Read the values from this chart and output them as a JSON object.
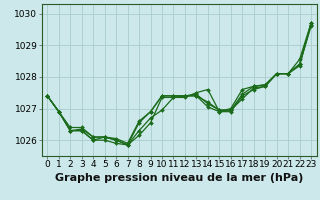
{
  "bg_color": "#cce8ea",
  "grid_color": "#aacccc",
  "line_color": "#1a6b1a",
  "xlim": [
    -0.5,
    23.5
  ],
  "ylim": [
    1025.5,
    1030.3
  ],
  "yticks": [
    1026,
    1027,
    1028,
    1029,
    1030
  ],
  "xticks": [
    0,
    1,
    2,
    3,
    4,
    5,
    6,
    7,
    8,
    9,
    10,
    11,
    12,
    13,
    14,
    15,
    16,
    17,
    18,
    19,
    20,
    21,
    22,
    23
  ],
  "series": [
    [
      1027.4,
      1026.9,
      1026.4,
      1026.4,
      1026.1,
      1026.1,
      1026.0,
      1025.85,
      1026.3,
      1026.7,
      1026.95,
      1027.35,
      1027.4,
      1027.4,
      1027.2,
      1026.95,
      1026.95,
      1027.3,
      1027.65,
      1027.7,
      1028.1,
      1028.1,
      1028.55,
      1029.7
    ],
    [
      1027.4,
      1026.9,
      1026.3,
      1026.3,
      1026.0,
      1026.0,
      1025.9,
      1025.85,
      1026.55,
      1026.9,
      1027.4,
      1027.4,
      1027.4,
      1027.4,
      1027.05,
      1026.9,
      1026.9,
      1027.4,
      1027.6,
      1027.7,
      1028.1,
      1028.1,
      1028.4,
      1029.65
    ],
    [
      1027.4,
      1026.9,
      1026.3,
      1026.3,
      1026.0,
      1026.1,
      1026.0,
      1025.85,
      1026.15,
      1026.55,
      1027.35,
      1027.35,
      1027.35,
      1027.5,
      1027.6,
      1026.9,
      1027.0,
      1027.6,
      1027.7,
      1027.75,
      1028.1,
      1028.1,
      1028.35,
      1029.7
    ],
    [
      1027.4,
      1026.9,
      1026.3,
      1026.35,
      1026.1,
      1026.1,
      1026.05,
      1025.9,
      1026.6,
      1026.9,
      1027.4,
      1027.4,
      1027.4,
      1027.45,
      1027.15,
      1026.95,
      1026.95,
      1027.45,
      1027.7,
      1027.75,
      1028.1,
      1028.1,
      1028.4,
      1029.6
    ]
  ],
  "xlabel": "Graphe pression niveau de la mer (hPa)",
  "xlabel_fontsize": 8,
  "tick_fontsize": 6.5
}
